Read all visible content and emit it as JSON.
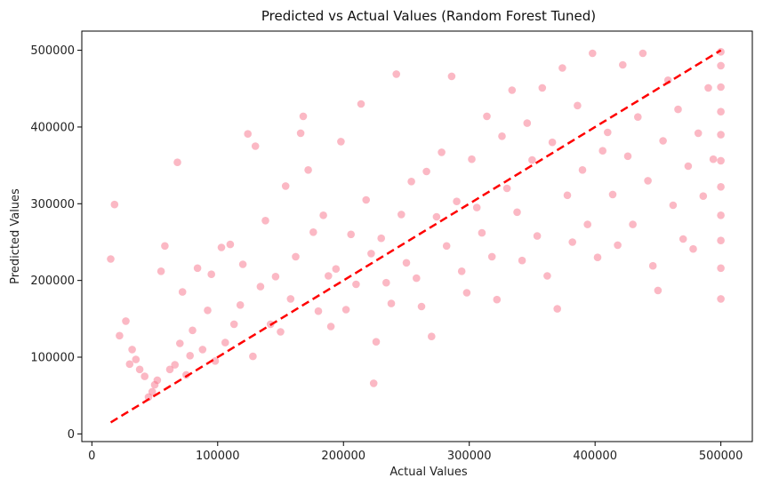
{
  "chart_data": {
    "type": "scatter",
    "title": "Predicted vs Actual Values (Random Forest Tuned)",
    "xlabel": "Actual Values",
    "ylabel": "Predicted Values",
    "xlim": [
      -8000,
      525000
    ],
    "ylim": [
      -10000,
      525000
    ],
    "xticks": [
      0,
      100000,
      200000,
      300000,
      400000,
      500000
    ],
    "yticks": [
      0,
      100000,
      200000,
      300000,
      400000,
      500000
    ],
    "xtick_labels": [
      "0",
      "100000",
      "200000",
      "300000",
      "400000",
      "500000"
    ],
    "ytick_labels": [
      "0",
      "100000",
      "200000",
      "300000",
      "400000",
      "500000"
    ],
    "grid": false,
    "legend": "none",
    "marker_color": "#f77189",
    "marker_alpha": 0.5,
    "reference_line": {
      "style": "dashed",
      "color": "#ff0000",
      "x": [
        15000,
        500001
      ],
      "y": [
        15000,
        500001
      ]
    },
    "series": [
      {
        "points": [
          [
            15000,
            228000
          ],
          [
            18000,
            299000
          ],
          [
            22000,
            128000
          ],
          [
            27000,
            147000
          ],
          [
            30000,
            91000
          ],
          [
            32000,
            110000
          ],
          [
            35000,
            97000
          ],
          [
            38000,
            84000
          ],
          [
            42000,
            75000
          ],
          [
            45000,
            48000
          ],
          [
            48000,
            55000
          ],
          [
            50000,
            64000
          ],
          [
            52000,
            70000
          ],
          [
            55000,
            212000
          ],
          [
            58000,
            245000
          ],
          [
            62000,
            84000
          ],
          [
            66000,
            90000
          ],
          [
            68000,
            354000
          ],
          [
            70000,
            118000
          ],
          [
            72000,
            185000
          ],
          [
            75000,
            77000
          ],
          [
            78000,
            102000
          ],
          [
            80000,
            135000
          ],
          [
            84000,
            216000
          ],
          [
            88000,
            110000
          ],
          [
            92000,
            161000
          ],
          [
            95000,
            208000
          ],
          [
            98000,
            95000
          ],
          [
            103000,
            243000
          ],
          [
            106000,
            119000
          ],
          [
            110000,
            247000
          ],
          [
            113000,
            143000
          ],
          [
            118000,
            168000
          ],
          [
            120000,
            221000
          ],
          [
            124000,
            391000
          ],
          [
            128000,
            101000
          ],
          [
            130000,
            375000
          ],
          [
            134000,
            192000
          ],
          [
            138000,
            278000
          ],
          [
            142000,
            143000
          ],
          [
            146000,
            205000
          ],
          [
            150000,
            133000
          ],
          [
            154000,
            323000
          ],
          [
            158000,
            176000
          ],
          [
            162000,
            231000
          ],
          [
            166000,
            392000
          ],
          [
            168000,
            414000
          ],
          [
            172000,
            344000
          ],
          [
            176000,
            263000
          ],
          [
            180000,
            160000
          ],
          [
            184000,
            285000
          ],
          [
            188000,
            206000
          ],
          [
            190000,
            140000
          ],
          [
            194000,
            215000
          ],
          [
            198000,
            381000
          ],
          [
            202000,
            162000
          ],
          [
            206000,
            260000
          ],
          [
            210000,
            195000
          ],
          [
            214000,
            430000
          ],
          [
            218000,
            305000
          ],
          [
            222000,
            235000
          ],
          [
            224000,
            66000
          ],
          [
            226000,
            120000
          ],
          [
            230000,
            255000
          ],
          [
            234000,
            197000
          ],
          [
            238000,
            170000
          ],
          [
            242000,
            469000
          ],
          [
            246000,
            286000
          ],
          [
            250000,
            223000
          ],
          [
            254000,
            329000
          ],
          [
            258000,
            203000
          ],
          [
            262000,
            166000
          ],
          [
            266000,
            342000
          ],
          [
            270000,
            127000
          ],
          [
            274000,
            283000
          ],
          [
            278000,
            367000
          ],
          [
            282000,
            245000
          ],
          [
            286000,
            466000
          ],
          [
            290000,
            303000
          ],
          [
            294000,
            212000
          ],
          [
            298000,
            184000
          ],
          [
            302000,
            358000
          ],
          [
            306000,
            295000
          ],
          [
            310000,
            262000
          ],
          [
            314000,
            414000
          ],
          [
            318000,
            231000
          ],
          [
            322000,
            175000
          ],
          [
            326000,
            388000
          ],
          [
            330000,
            320000
          ],
          [
            334000,
            448000
          ],
          [
            338000,
            289000
          ],
          [
            342000,
            226000
          ],
          [
            346000,
            405000
          ],
          [
            350000,
            357000
          ],
          [
            354000,
            258000
          ],
          [
            358000,
            451000
          ],
          [
            362000,
            206000
          ],
          [
            366000,
            380000
          ],
          [
            370000,
            163000
          ],
          [
            374000,
            477000
          ],
          [
            378000,
            311000
          ],
          [
            382000,
            250000
          ],
          [
            386000,
            428000
          ],
          [
            390000,
            344000
          ],
          [
            394000,
            273000
          ],
          [
            398000,
            496000
          ],
          [
            402000,
            230000
          ],
          [
            406000,
            369000
          ],
          [
            410000,
            393000
          ],
          [
            414000,
            312000
          ],
          [
            418000,
            246000
          ],
          [
            422000,
            481000
          ],
          [
            426000,
            362000
          ],
          [
            430000,
            273000
          ],
          [
            434000,
            413000
          ],
          [
            438000,
            496000
          ],
          [
            442000,
            330000
          ],
          [
            446000,
            219000
          ],
          [
            450000,
            187000
          ],
          [
            454000,
            382000
          ],
          [
            458000,
            461000
          ],
          [
            462000,
            298000
          ],
          [
            466000,
            423000
          ],
          [
            470000,
            254000
          ],
          [
            474000,
            349000
          ],
          [
            478000,
            241000
          ],
          [
            482000,
            392000
          ],
          [
            486000,
            310000
          ],
          [
            490000,
            451000
          ],
          [
            494000,
            358000
          ],
          [
            500001,
            176000
          ],
          [
            500001,
            216000
          ],
          [
            500001,
            252000
          ],
          [
            500001,
            285000
          ],
          [
            500001,
            322000
          ],
          [
            500001,
            356000
          ],
          [
            500001,
            390000
          ],
          [
            500001,
            420000
          ],
          [
            500001,
            452000
          ],
          [
            500001,
            480000
          ],
          [
            500001,
            498000
          ]
        ]
      }
    ]
  }
}
